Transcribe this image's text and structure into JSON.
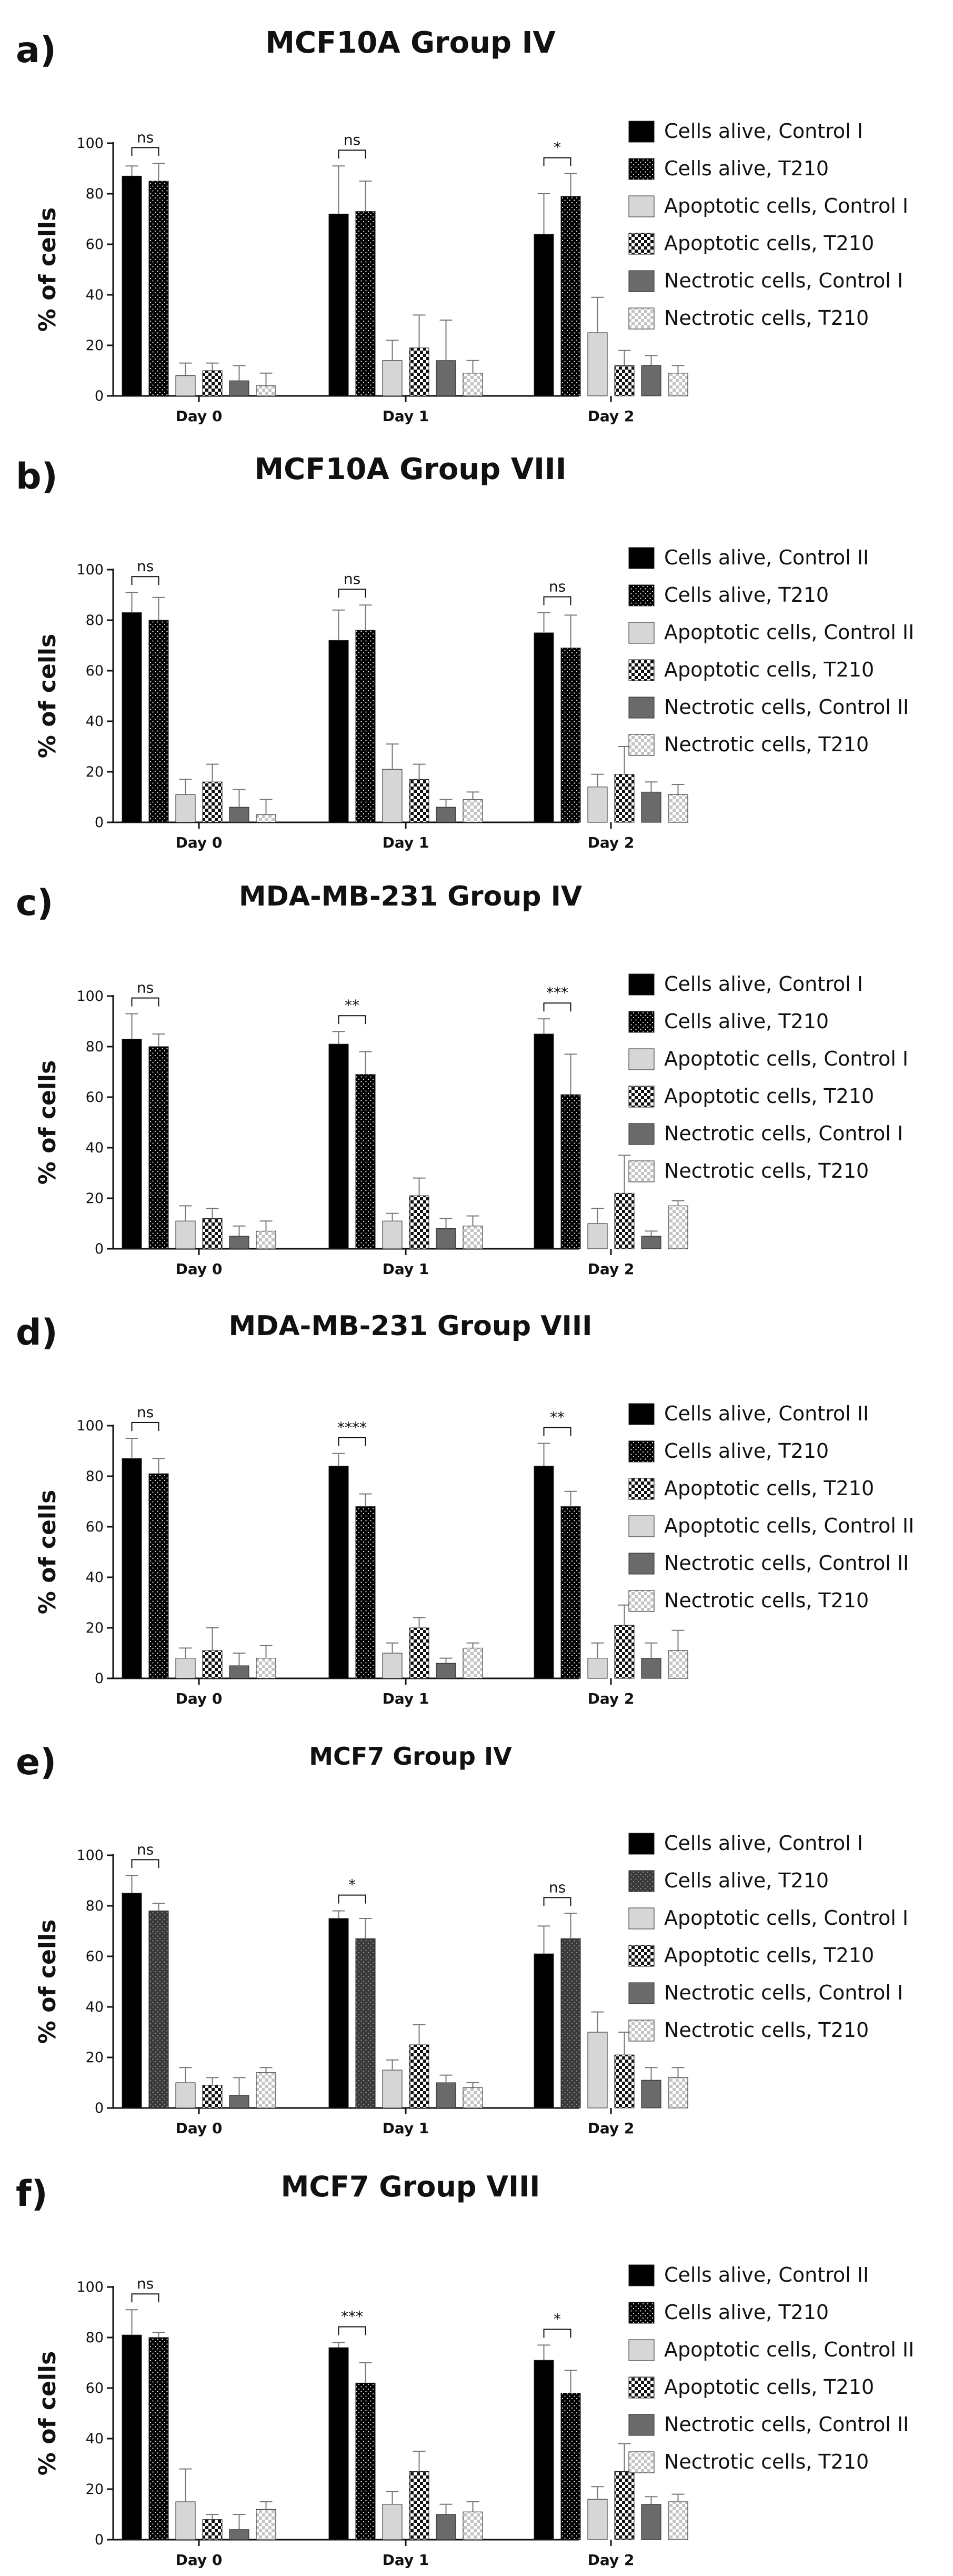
{
  "chart_data": [
    {
      "panel": "a)",
      "title": "MCF10A Group IV",
      "type": "bar",
      "ylabel": "% of cells",
      "ylim": [
        0,
        100
      ],
      "yticks": [
        0,
        20,
        40,
        60,
        80,
        100
      ],
      "categories": [
        "Day 0",
        "Day 1",
        "Day 2"
      ],
      "significance": [
        "ns",
        "ns",
        "*"
      ],
      "series": [
        {
          "name": "Cells alive, Control I",
          "pattern": "black",
          "values": [
            87,
            72,
            64
          ],
          "errors": [
            4,
            19,
            16
          ]
        },
        {
          "name": "Cells alive, T210",
          "pattern": "dots",
          "values": [
            85,
            73,
            79
          ],
          "errors": [
            7,
            12,
            9
          ]
        },
        {
          "name": "Apoptotic cells, Control I",
          "pattern": "light",
          "values": [
            8,
            14,
            25
          ],
          "errors": [
            5,
            8,
            14
          ]
        },
        {
          "name": "Apoptotic cells, T210",
          "pattern": "checker",
          "values": [
            10,
            19,
            12
          ],
          "errors": [
            3,
            13,
            6
          ]
        },
        {
          "name": "Nectrotic cells, Control I",
          "pattern": "gray",
          "values": [
            6,
            14,
            12
          ],
          "errors": [
            6,
            16,
            4
          ]
        },
        {
          "name": "Nectrotic cells, T210",
          "pattern": "lightchecker",
          "values": [
            4,
            9,
            9
          ],
          "errors": [
            5,
            5,
            3
          ]
        }
      ]
    },
    {
      "panel": "b)",
      "title": "MCF10A Group VIII",
      "type": "bar",
      "ylabel": "% of cells",
      "ylim": [
        0,
        100
      ],
      "yticks": [
        0,
        20,
        40,
        60,
        80,
        100
      ],
      "categories": [
        "Day 0",
        "Day 1",
        "Day 2"
      ],
      "significance": [
        "ns",
        "ns",
        "ns"
      ],
      "series": [
        {
          "name": "Cells alive, Control II",
          "pattern": "black",
          "values": [
            83,
            72,
            75
          ],
          "errors": [
            8,
            12,
            8
          ]
        },
        {
          "name": "Cells alive, T210",
          "pattern": "dots",
          "values": [
            80,
            76,
            69
          ],
          "errors": [
            9,
            10,
            13
          ]
        },
        {
          "name": "Apoptotic cells, Control II",
          "pattern": "light",
          "values": [
            11,
            21,
            14
          ],
          "errors": [
            6,
            10,
            5
          ]
        },
        {
          "name": "Apoptotic cells, T210",
          "pattern": "checker",
          "values": [
            16,
            17,
            19
          ],
          "errors": [
            7,
            6,
            11
          ]
        },
        {
          "name": "Nectrotic cells, Control II",
          "pattern": "gray",
          "values": [
            6,
            6,
            12
          ],
          "errors": [
            7,
            3,
            4
          ]
        },
        {
          "name": "Nectrotic cells, T210",
          "pattern": "lightchecker",
          "values": [
            3,
            9,
            11
          ],
          "errors": [
            6,
            3,
            4
          ]
        }
      ]
    },
    {
      "panel": "c)",
      "title": "MDA-MB-231 Group IV",
      "type": "bar",
      "ylabel": "% of cells",
      "ylim": [
        0,
        100
      ],
      "yticks": [
        0,
        20,
        40,
        60,
        80,
        100
      ],
      "categories": [
        "Day 0",
        "Day 1",
        "Day 2"
      ],
      "significance": [
        "ns",
        "**",
        "***"
      ],
      "series": [
        {
          "name": "Cells alive, Control I",
          "pattern": "black",
          "values": [
            83,
            81,
            85
          ],
          "errors": [
            10,
            5,
            6
          ]
        },
        {
          "name": "Cells alive, T210",
          "pattern": "dots",
          "values": [
            80,
            69,
            61
          ],
          "errors": [
            5,
            9,
            16
          ]
        },
        {
          "name": "Apoptotic cells, Control I",
          "pattern": "light",
          "values": [
            11,
            11,
            10
          ],
          "errors": [
            6,
            3,
            6
          ]
        },
        {
          "name": "Apoptotic cells, T210",
          "pattern": "checker",
          "values": [
            12,
            21,
            22
          ],
          "errors": [
            4,
            7,
            15
          ]
        },
        {
          "name": "Nectrotic cells, Control I",
          "pattern": "gray",
          "values": [
            5,
            8,
            5
          ],
          "errors": [
            4,
            4,
            2
          ]
        },
        {
          "name": "Nectrotic cells, T210",
          "pattern": "lightchecker",
          "values": [
            7,
            9,
            17
          ],
          "errors": [
            4,
            4,
            2
          ]
        }
      ]
    },
    {
      "panel": "d)",
      "title": "MDA-MB-231 Group VIII",
      "type": "bar",
      "ylabel": "% of cells",
      "ylim": [
        0,
        100
      ],
      "yticks": [
        0,
        20,
        40,
        60,
        80,
        100
      ],
      "categories": [
        "Day 0",
        "Day 1",
        "Day 2"
      ],
      "significance": [
        "ns",
        "****",
        "**"
      ],
      "series": [
        {
          "name": "Cells alive, Control II",
          "pattern": "black",
          "values": [
            87,
            84,
            84
          ],
          "errors": [
            8,
            5,
            9
          ]
        },
        {
          "name": "Cells alive, T210",
          "pattern": "dots",
          "values": [
            81,
            68,
            68
          ],
          "errors": [
            6,
            5,
            6
          ]
        },
        {
          "name": "Apoptotic cells, Control II",
          "pattern": "light",
          "values": [
            8,
            10,
            8
          ],
          "errors": [
            4,
            4,
            6
          ]
        },
        {
          "name": "Apoptotic cells, T210",
          "pattern": "checker",
          "values": [
            11,
            20,
            21
          ],
          "errors": [
            9,
            4,
            8
          ]
        },
        {
          "name": "Nectrotic cells, Control II",
          "pattern": "gray",
          "values": [
            5,
            6,
            8
          ],
          "errors": [
            5,
            2,
            6
          ]
        },
        {
          "name": "Nectrotic cells, T210",
          "pattern": "lightchecker",
          "values": [
            8,
            12,
            11
          ],
          "errors": [
            5,
            2,
            8
          ]
        }
      ],
      "legend_order": [
        0,
        1,
        3,
        2,
        4,
        5
      ]
    },
    {
      "panel": "e)",
      "title": "MCF7 Group IV",
      "type": "bar",
      "ylabel": "% of cells",
      "ylim": [
        0,
        100
      ],
      "yticks": [
        0,
        20,
        40,
        60,
        80,
        100
      ],
      "categories": [
        "Day 0",
        "Day 1",
        "Day 2"
      ],
      "significance": [
        "ns",
        "*",
        "ns"
      ],
      "series": [
        {
          "name": "Cells alive, Control I",
          "pattern": "black",
          "values": [
            85,
            75,
            61
          ],
          "errors": [
            7,
            3,
            11
          ]
        },
        {
          "name": "Cells alive, T210",
          "pattern": "darkdots",
          "values": [
            78,
            67,
            67
          ],
          "errors": [
            3,
            8,
            10
          ]
        },
        {
          "name": "Apoptotic cells, Control I",
          "pattern": "light",
          "values": [
            10,
            15,
            30
          ],
          "errors": [
            6,
            4,
            8
          ]
        },
        {
          "name": "Apoptotic cells, T210",
          "pattern": "checker",
          "values": [
            9,
            25,
            21
          ],
          "errors": [
            3,
            8,
            9
          ]
        },
        {
          "name": "Nectrotic cells, Control I",
          "pattern": "gray",
          "values": [
            5,
            10,
            11
          ],
          "errors": [
            7,
            3,
            5
          ]
        },
        {
          "name": "Nectrotic cells, T210",
          "pattern": "lightchecker",
          "values": [
            14,
            8,
            12
          ],
          "errors": [
            2,
            2,
            4
          ]
        }
      ]
    },
    {
      "panel": "f)",
      "title": "MCF7 Group VIII",
      "type": "bar",
      "ylabel": "% of cells",
      "ylim": [
        0,
        100
      ],
      "yticks": [
        0,
        20,
        40,
        60,
        80,
        100
      ],
      "categories": [
        "Day 0",
        "Day 1",
        "Day 2"
      ],
      "significance": [
        "ns",
        "***",
        "*"
      ],
      "series": [
        {
          "name": "Cells alive, Control II",
          "pattern": "black",
          "values": [
            81,
            76,
            71
          ],
          "errors": [
            10,
            2,
            6
          ]
        },
        {
          "name": "Cells alive, T210",
          "pattern": "dots",
          "values": [
            80,
            62,
            58
          ],
          "errors": [
            2,
            8,
            9
          ]
        },
        {
          "name": "Apoptotic cells, Control II",
          "pattern": "light",
          "values": [
            15,
            14,
            16
          ],
          "errors": [
            13,
            5,
            5
          ]
        },
        {
          "name": "Apoptotic cells, T210",
          "pattern": "checker",
          "values": [
            8,
            27,
            27
          ],
          "errors": [
            2,
            8,
            11
          ]
        },
        {
          "name": "Nectrotic cells, Control II",
          "pattern": "gray",
          "values": [
            4,
            10,
            14
          ],
          "errors": [
            6,
            4,
            3
          ]
        },
        {
          "name": "Nectrotic cells, T210",
          "pattern": "lightchecker",
          "values": [
            12,
            11,
            15
          ],
          "errors": [
            3,
            4,
            3
          ]
        }
      ]
    }
  ]
}
